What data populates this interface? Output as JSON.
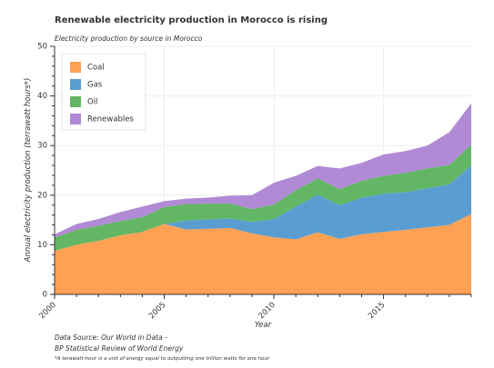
{
  "chart_data": {
    "type": "area",
    "stacked": true,
    "title": "Renewable electricity production in Morocco is rising",
    "subtitle": "Electricity production by source in Morocco",
    "xlabel": "Year",
    "ylabel": "Annual electricity production (terrawatt hours*)",
    "xlim": [
      2000,
      2019
    ],
    "ylim": [
      0,
      50
    ],
    "x_ticks": [
      2000,
      2005,
      2010,
      2015
    ],
    "y_ticks": [
      0,
      10,
      20,
      30,
      40,
      50
    ],
    "grid": true,
    "legend_position": "top-left",
    "x": [
      2000,
      2001,
      2002,
      2003,
      2004,
      2005,
      2006,
      2007,
      2008,
      2009,
      2010,
      2011,
      2012,
      2013,
      2014,
      2015,
      2016,
      2017,
      2018,
      2019
    ],
    "series": [
      {
        "name": "Coal",
        "color": "#ffa154",
        "values": [
          8.8,
          10.0,
          10.8,
          11.9,
          12.6,
          14.2,
          13.1,
          13.2,
          13.4,
          12.3,
          11.5,
          11.1,
          12.5,
          11.2,
          12.1,
          12.6,
          13.0,
          13.5,
          14.0,
          16.2
        ]
      },
      {
        "name": "Gas",
        "color": "#5a9ed1",
        "values": [
          0.0,
          0.0,
          0.0,
          0.0,
          0.0,
          0.0,
          1.8,
          1.9,
          1.9,
          2.3,
          3.7,
          6.6,
          7.6,
          6.8,
          7.4,
          7.7,
          7.6,
          7.9,
          8.2,
          9.8
        ]
      },
      {
        "name": "Oil",
        "color": "#63b663",
        "values": [
          2.7,
          3.0,
          3.0,
          2.9,
          3.0,
          3.4,
          3.3,
          3.2,
          3.0,
          2.6,
          2.9,
          3.3,
          3.3,
          3.2,
          3.4,
          3.6,
          3.9,
          4.0,
          3.9,
          4.2
        ]
      },
      {
        "name": "Renewables",
        "color": "#b08ad5",
        "values": [
          0.6,
          1.2,
          1.4,
          1.8,
          2.1,
          1.2,
          1.1,
          1.2,
          1.6,
          2.8,
          4.4,
          2.9,
          2.5,
          4.2,
          3.6,
          4.3,
          4.4,
          4.6,
          6.6,
          8.3
        ]
      }
    ],
    "footer_lines": [
      "Data Source: Our World in Data -",
      "BP Statistical Review of World Energy"
    ],
    "footnote": "*A terawatt-hour is a unit of energy equal to outputting one trillion watts for one hour"
  }
}
